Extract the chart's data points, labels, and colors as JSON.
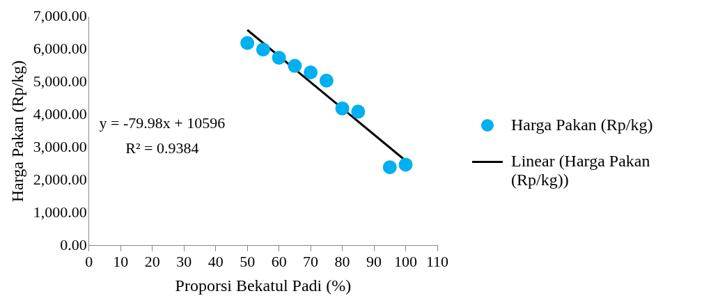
{
  "chart_data": {
    "type": "scatter",
    "xlabel": "Proporsi Bekatul Padi (%)",
    "ylabel": "Harga Pakan (Rp/kg)",
    "xlim": [
      0,
      110
    ],
    "xticks": [
      0,
      10,
      20,
      30,
      40,
      50,
      60,
      70,
      80,
      90,
      100,
      110
    ],
    "ylim": [
      0,
      7000
    ],
    "yticks": [
      {
        "value": 0,
        "label": "0.00"
      },
      {
        "value": 1000,
        "label": "1,000.00"
      },
      {
        "value": 2000,
        "label": "2,000.00"
      },
      {
        "value": 3000,
        "label": "3,000.00"
      },
      {
        "value": 4000,
        "label": "4,000.00"
      },
      {
        "value": 5000,
        "label": "5,000.00"
      },
      {
        "value": 6000,
        "label": "6,000.00"
      },
      {
        "value": 7000,
        "label": "7,000.00"
      }
    ],
    "grid": false,
    "legend": "right",
    "annotations": [
      "y = -79.98x + 10596",
      "R² = 0.9384"
    ],
    "series": [
      {
        "name": "Harga Pakan (Rp/kg)",
        "type": "scatter",
        "marker": "circle",
        "color": "#00b0f0",
        "x": [
          50,
          55,
          60,
          65,
          70,
          75,
          80,
          85,
          95,
          100
        ],
        "values": [
          6200,
          6000,
          5750,
          5500,
          5300,
          5050,
          4200,
          4100,
          2400,
          2480
        ]
      },
      {
        "name": "Linear (Harga Pakan (Rp/kg))",
        "type": "line",
        "color": "#000000",
        "x": [
          50,
          100
        ],
        "values": [
          6600,
          2600
        ]
      }
    ]
  }
}
